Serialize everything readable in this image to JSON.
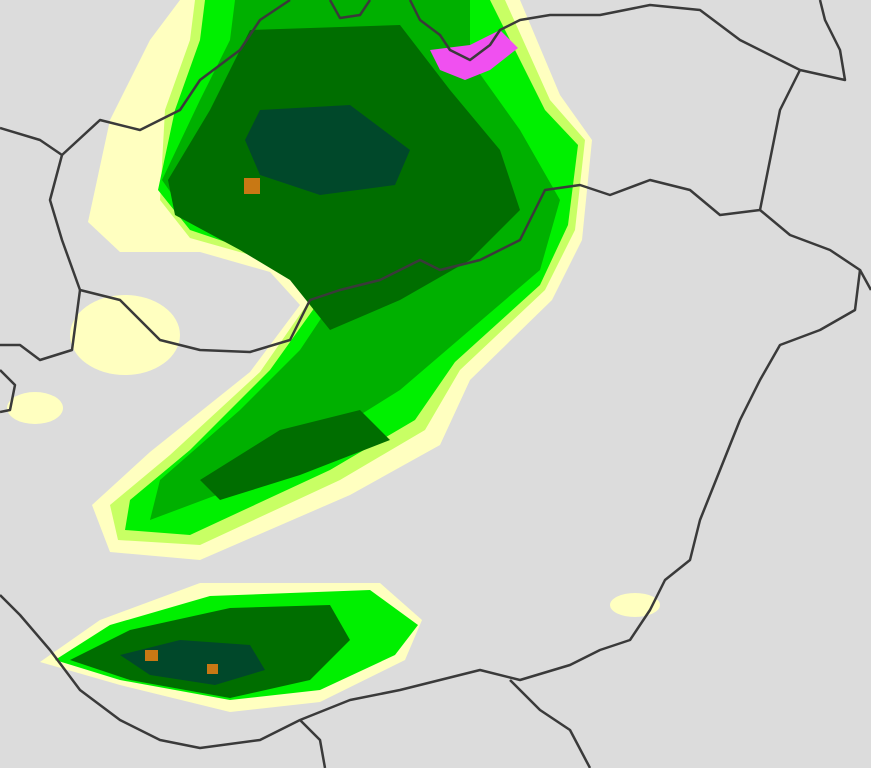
{
  "map": {
    "colors": {
      "background": "#dcdcdc",
      "border": "#3a3a3a",
      "very_light": "#ffffc0",
      "light": "#c8ff64",
      "bright_green": "#00f000",
      "medium_green": "#00b000",
      "dark_green": "#006e00",
      "darkest_green": "#00482a",
      "orange": "#c87814",
      "magenta": "#f050f0"
    }
  }
}
